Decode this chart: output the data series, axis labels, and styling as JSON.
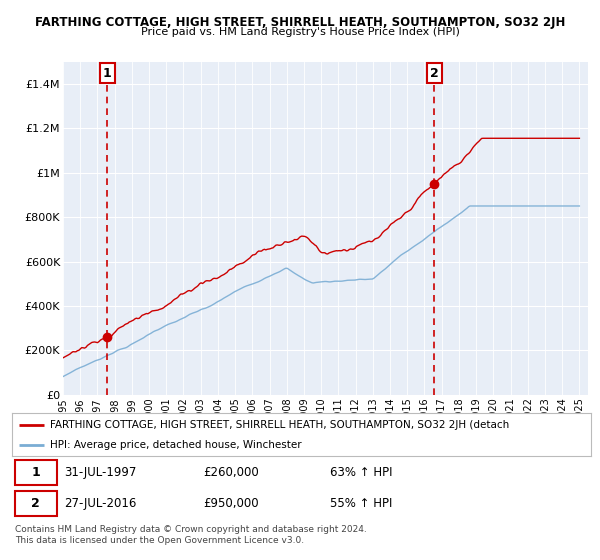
{
  "title": "FARTHING COTTAGE, HIGH STREET, SHIRRELL HEATH, SOUTHAMPTON, SO32 2JH",
  "subtitle": "Price paid vs. HM Land Registry's House Price Index (HPI)",
  "ylabel_ticks": [
    "£0",
    "£200K",
    "£400K",
    "£600K",
    "£800K",
    "£1M",
    "£1.2M",
    "£1.4M"
  ],
  "ytick_values": [
    0,
    200000,
    400000,
    600000,
    800000,
    1000000,
    1200000,
    1400000
  ],
  "ylim": [
    0,
    1500000
  ],
  "sale1_date_num": 1997.58,
  "sale1_price": 260000,
  "sale1_label": "1",
  "sale2_date_num": 2016.58,
  "sale2_price": 950000,
  "sale2_label": "2",
  "legend_line1": "FARTHING COTTAGE, HIGH STREET, SHIRRELL HEATH, SOUTHAMPTON, SO32 2JH (detach",
  "legend_line2": "HPI: Average price, detached house, Winchester",
  "copyright": "Contains HM Land Registry data © Crown copyright and database right 2024.\nThis data is licensed under the Open Government Licence v3.0.",
  "red_color": "#cc0000",
  "blue_color": "#7aadd4",
  "plot_bg": "#e8eef7",
  "grid_color": "#ffffff"
}
